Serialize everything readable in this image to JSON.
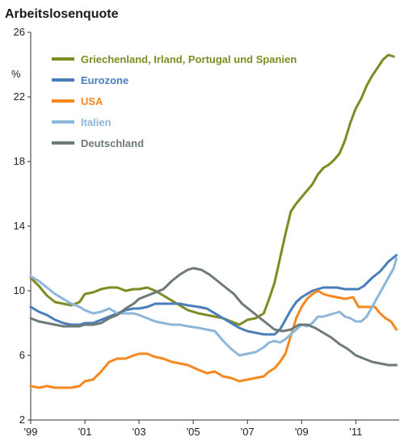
{
  "chart_data": {
    "type": "line",
    "title": "Arbeitslosenquote",
    "unit_label": "%",
    "xlim": [
      1999.0,
      2012.6
    ],
    "ylim": [
      2,
      26
    ],
    "yticks": [
      2,
      6,
      10,
      14,
      18,
      22,
      26
    ],
    "xticks": [
      {
        "value": 1999,
        "label": "'99"
      },
      {
        "value": 2001,
        "label": "'01"
      },
      {
        "value": 2003,
        "label": "'03"
      },
      {
        "value": 2005,
        "label": "'05"
      },
      {
        "value": 2007,
        "label": "'07"
      },
      {
        "value": 2009,
        "label": "'09"
      },
      {
        "value": 2011,
        "label": "'11"
      }
    ],
    "grid": false,
    "legend_position": "top-left",
    "series": [
      {
        "name": "Griechenland, Irland, Portugal und Spanien",
        "color": "#7f8c24",
        "points": [
          [
            1999.0,
            10.8
          ],
          [
            1999.3,
            10.3
          ],
          [
            1999.6,
            9.7
          ],
          [
            1999.9,
            9.3
          ],
          [
            2000.2,
            9.2
          ],
          [
            2000.5,
            9.1
          ],
          [
            2000.8,
            9.3
          ],
          [
            2001.0,
            9.8
          ],
          [
            2001.3,
            9.9
          ],
          [
            2001.6,
            10.1
          ],
          [
            2001.9,
            10.2
          ],
          [
            2002.2,
            10.2
          ],
          [
            2002.5,
            10.0
          ],
          [
            2002.8,
            10.1
          ],
          [
            2003.0,
            10.1
          ],
          [
            2003.3,
            10.2
          ],
          [
            2003.6,
            10.0
          ],
          [
            2003.9,
            9.7
          ],
          [
            2004.2,
            9.4
          ],
          [
            2004.5,
            9.1
          ],
          [
            2004.8,
            8.8
          ],
          [
            2005.2,
            8.6
          ],
          [
            2005.5,
            8.5
          ],
          [
            2005.8,
            8.4
          ],
          [
            2006.1,
            8.3
          ],
          [
            2006.4,
            8.1
          ],
          [
            2006.7,
            7.9
          ],
          [
            2007.0,
            8.2
          ],
          [
            2007.3,
            8.3
          ],
          [
            2007.6,
            8.6
          ],
          [
            2007.8,
            9.5
          ],
          [
            2008.0,
            10.5
          ],
          [
            2008.2,
            12.0
          ],
          [
            2008.4,
            13.5
          ],
          [
            2008.6,
            14.9
          ],
          [
            2008.8,
            15.4
          ],
          [
            2009.0,
            15.8
          ],
          [
            2009.2,
            16.2
          ],
          [
            2009.4,
            16.6
          ],
          [
            2009.6,
            17.2
          ],
          [
            2009.8,
            17.6
          ],
          [
            2010.0,
            17.8
          ],
          [
            2010.2,
            18.1
          ],
          [
            2010.4,
            18.5
          ],
          [
            2010.6,
            19.3
          ],
          [
            2010.8,
            20.4
          ],
          [
            2011.0,
            21.3
          ],
          [
            2011.2,
            21.9
          ],
          [
            2011.4,
            22.7
          ],
          [
            2011.6,
            23.3
          ],
          [
            2011.8,
            23.8
          ],
          [
            2012.0,
            24.3
          ],
          [
            2012.2,
            24.6
          ],
          [
            2012.4,
            24.5
          ]
        ]
      },
      {
        "name": "Eurozone",
        "color": "#4a7ebb",
        "points": [
          [
            1999.0,
            9.0
          ],
          [
            1999.3,
            8.7
          ],
          [
            1999.6,
            8.5
          ],
          [
            1999.9,
            8.2
          ],
          [
            2000.2,
            8.0
          ],
          [
            2000.5,
            7.9
          ],
          [
            2000.8,
            7.9
          ],
          [
            2001.0,
            8.0
          ],
          [
            2001.3,
            8.0
          ],
          [
            2001.6,
            8.2
          ],
          [
            2001.9,
            8.4
          ],
          [
            2002.2,
            8.6
          ],
          [
            2002.5,
            8.8
          ],
          [
            2002.8,
            8.9
          ],
          [
            2003.0,
            8.9
          ],
          [
            2003.3,
            9.0
          ],
          [
            2003.6,
            9.2
          ],
          [
            2003.9,
            9.2
          ],
          [
            2004.2,
            9.2
          ],
          [
            2004.5,
            9.2
          ],
          [
            2004.8,
            9.1
          ],
          [
            2005.2,
            9.0
          ],
          [
            2005.5,
            8.9
          ],
          [
            2005.8,
            8.6
          ],
          [
            2006.1,
            8.3
          ],
          [
            2006.4,
            8.0
          ],
          [
            2006.7,
            7.7
          ],
          [
            2007.0,
            7.5
          ],
          [
            2007.3,
            7.4
          ],
          [
            2007.6,
            7.3
          ],
          [
            2007.8,
            7.3
          ],
          [
            2008.0,
            7.3
          ],
          [
            2008.2,
            7.6
          ],
          [
            2008.4,
            8.2
          ],
          [
            2008.6,
            8.8
          ],
          [
            2008.8,
            9.3
          ],
          [
            2009.0,
            9.6
          ],
          [
            2009.2,
            9.8
          ],
          [
            2009.4,
            10.0
          ],
          [
            2009.6,
            10.1
          ],
          [
            2009.8,
            10.2
          ],
          [
            2010.0,
            10.2
          ],
          [
            2010.3,
            10.2
          ],
          [
            2010.6,
            10.1
          ],
          [
            2010.9,
            10.1
          ],
          [
            2011.1,
            10.1
          ],
          [
            2011.3,
            10.3
          ],
          [
            2011.6,
            10.8
          ],
          [
            2011.9,
            11.2
          ],
          [
            2012.2,
            11.8
          ],
          [
            2012.5,
            12.2
          ]
        ]
      },
      {
        "name": "USA",
        "color": "#f5891f",
        "points": [
          [
            1999.0,
            4.1
          ],
          [
            1999.3,
            4.0
          ],
          [
            1999.6,
            4.1
          ],
          [
            1999.9,
            4.0
          ],
          [
            2000.2,
            4.0
          ],
          [
            2000.5,
            4.0
          ],
          [
            2000.8,
            4.1
          ],
          [
            2001.0,
            4.4
          ],
          [
            2001.3,
            4.5
          ],
          [
            2001.6,
            5.0
          ],
          [
            2001.9,
            5.6
          ],
          [
            2002.2,
            5.8
          ],
          [
            2002.5,
            5.8
          ],
          [
            2002.8,
            6.0
          ],
          [
            2003.0,
            6.1
          ],
          [
            2003.3,
            6.1
          ],
          [
            2003.6,
            5.9
          ],
          [
            2003.9,
            5.8
          ],
          [
            2004.2,
            5.6
          ],
          [
            2004.5,
            5.5
          ],
          [
            2004.8,
            5.4
          ],
          [
            2005.2,
            5.1
          ],
          [
            2005.5,
            4.9
          ],
          [
            2005.8,
            5.0
          ],
          [
            2006.1,
            4.7
          ],
          [
            2006.4,
            4.6
          ],
          [
            2006.7,
            4.4
          ],
          [
            2007.0,
            4.5
          ],
          [
            2007.3,
            4.6
          ],
          [
            2007.6,
            4.7
          ],
          [
            2007.8,
            5.0
          ],
          [
            2008.0,
            5.2
          ],
          [
            2008.2,
            5.6
          ],
          [
            2008.4,
            6.1
          ],
          [
            2008.6,
            7.2
          ],
          [
            2008.8,
            8.3
          ],
          [
            2009.0,
            9.0
          ],
          [
            2009.2,
            9.5
          ],
          [
            2009.4,
            9.8
          ],
          [
            2009.6,
            10.0
          ],
          [
            2009.8,
            9.8
          ],
          [
            2010.0,
            9.7
          ],
          [
            2010.3,
            9.6
          ],
          [
            2010.6,
            9.5
          ],
          [
            2010.9,
            9.6
          ],
          [
            2011.1,
            9.0
          ],
          [
            2011.4,
            9.0
          ],
          [
            2011.7,
            9.0
          ],
          [
            2011.9,
            8.6
          ],
          [
            2012.1,
            8.3
          ],
          [
            2012.3,
            8.1
          ],
          [
            2012.5,
            7.6
          ]
        ]
      },
      {
        "name": "Italien",
        "color": "#8cb7da",
        "points": [
          [
            1999.0,
            10.9
          ],
          [
            1999.3,
            10.6
          ],
          [
            1999.6,
            10.2
          ],
          [
            1999.9,
            9.8
          ],
          [
            2000.2,
            9.5
          ],
          [
            2000.5,
            9.2
          ],
          [
            2000.8,
            9.0
          ],
          [
            2001.0,
            8.8
          ],
          [
            2001.3,
            8.6
          ],
          [
            2001.6,
            8.7
          ],
          [
            2001.9,
            8.9
          ],
          [
            2002.2,
            8.6
          ],
          [
            2002.5,
            8.6
          ],
          [
            2002.8,
            8.6
          ],
          [
            2003.0,
            8.5
          ],
          [
            2003.3,
            8.3
          ],
          [
            2003.6,
            8.1
          ],
          [
            2003.9,
            8.0
          ],
          [
            2004.2,
            7.9
          ],
          [
            2004.5,
            7.9
          ],
          [
            2004.8,
            7.8
          ],
          [
            2005.2,
            7.7
          ],
          [
            2005.5,
            7.6
          ],
          [
            2005.8,
            7.5
          ],
          [
            2006.1,
            6.9
          ],
          [
            2006.4,
            6.4
          ],
          [
            2006.7,
            6.0
          ],
          [
            2007.0,
            6.1
          ],
          [
            2007.3,
            6.2
          ],
          [
            2007.6,
            6.5
          ],
          [
            2007.8,
            6.8
          ],
          [
            2008.0,
            6.9
          ],
          [
            2008.2,
            6.8
          ],
          [
            2008.4,
            7.0
          ],
          [
            2008.6,
            7.3
          ],
          [
            2008.8,
            7.6
          ],
          [
            2009.0,
            7.9
          ],
          [
            2009.2,
            7.8
          ],
          [
            2009.4,
            8.0
          ],
          [
            2009.6,
            8.4
          ],
          [
            2009.8,
            8.4
          ],
          [
            2010.0,
            8.5
          ],
          [
            2010.2,
            8.6
          ],
          [
            2010.4,
            8.7
          ],
          [
            2010.6,
            8.4
          ],
          [
            2010.8,
            8.3
          ],
          [
            2011.0,
            8.1
          ],
          [
            2011.2,
            8.1
          ],
          [
            2011.4,
            8.4
          ],
          [
            2011.6,
            9.0
          ],
          [
            2011.8,
            9.6
          ],
          [
            2012.0,
            10.2
          ],
          [
            2012.2,
            10.8
          ],
          [
            2012.4,
            11.4
          ],
          [
            2012.5,
            12.0
          ]
        ]
      },
      {
        "name": "Deutschland",
        "color": "#6e7a78",
        "points": [
          [
            1999.0,
            8.3
          ],
          [
            1999.3,
            8.1
          ],
          [
            1999.6,
            8.0
          ],
          [
            1999.9,
            7.9
          ],
          [
            2000.2,
            7.8
          ],
          [
            2000.5,
            7.8
          ],
          [
            2000.8,
            7.8
          ],
          [
            2001.0,
            7.9
          ],
          [
            2001.3,
            7.9
          ],
          [
            2001.6,
            8.0
          ],
          [
            2001.9,
            8.3
          ],
          [
            2002.2,
            8.5
          ],
          [
            2002.5,
            8.9
          ],
          [
            2002.8,
            9.2
          ],
          [
            2003.0,
            9.5
          ],
          [
            2003.3,
            9.7
          ],
          [
            2003.6,
            9.9
          ],
          [
            2003.9,
            10.1
          ],
          [
            2004.2,
            10.6
          ],
          [
            2004.5,
            11.0
          ],
          [
            2004.8,
            11.3
          ],
          [
            2005.0,
            11.4
          ],
          [
            2005.3,
            11.3
          ],
          [
            2005.6,
            11.0
          ],
          [
            2005.9,
            10.6
          ],
          [
            2006.2,
            10.2
          ],
          [
            2006.5,
            9.8
          ],
          [
            2006.8,
            9.2
          ],
          [
            2007.1,
            8.8
          ],
          [
            2007.4,
            8.4
          ],
          [
            2007.7,
            8.0
          ],
          [
            2008.0,
            7.6
          ],
          [
            2008.3,
            7.5
          ],
          [
            2008.6,
            7.6
          ],
          [
            2008.9,
            7.9
          ],
          [
            2009.2,
            7.9
          ],
          [
            2009.5,
            7.7
          ],
          [
            2009.8,
            7.4
          ],
          [
            2010.1,
            7.1
          ],
          [
            2010.4,
            6.7
          ],
          [
            2010.7,
            6.4
          ],
          [
            2011.0,
            6.0
          ],
          [
            2011.3,
            5.8
          ],
          [
            2011.6,
            5.6
          ],
          [
            2011.9,
            5.5
          ],
          [
            2012.2,
            5.4
          ],
          [
            2012.5,
            5.4
          ]
        ]
      }
    ]
  }
}
